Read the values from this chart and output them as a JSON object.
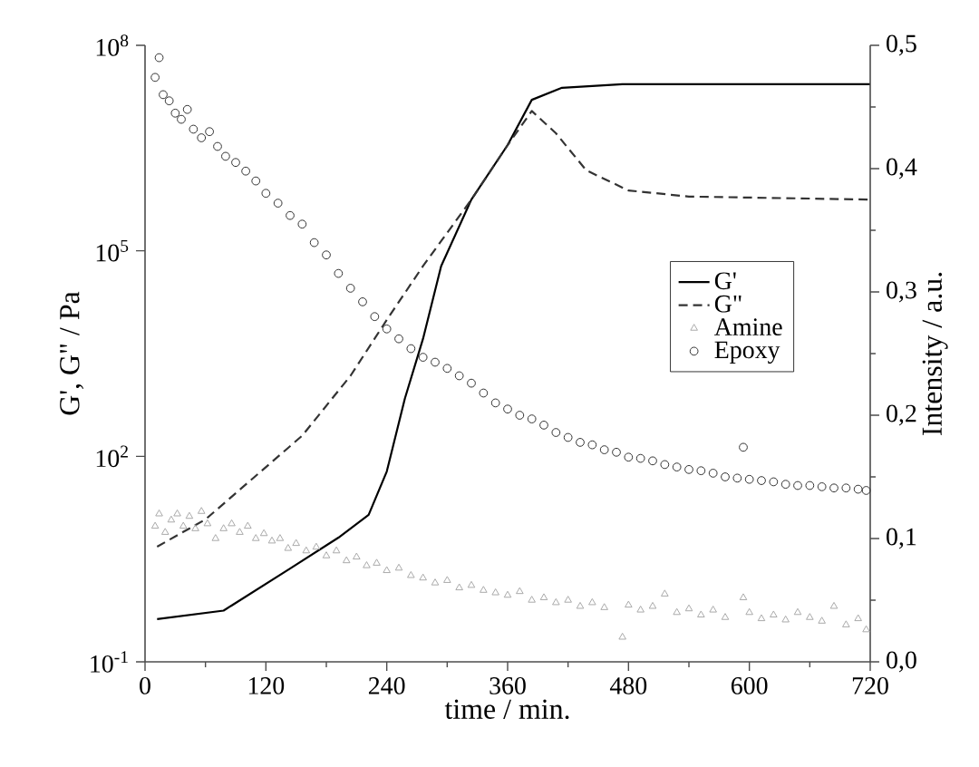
{
  "chart_data": {
    "type": "line",
    "xlabel": "time / min.",
    "ylabel": "G', G\" / Pa",
    "y2label": "Intensity / a.u.",
    "log": "y",
    "legend": "right",
    "grid": false,
    "xlim": [
      0,
      720
    ],
    "xticks": [
      0,
      120,
      240,
      360,
      480,
      600,
      720
    ],
    "ylim": [
      0.1,
      100000000
    ],
    "yticks": [
      {
        "value": 0.1,
        "label": "10$^{-1}$"
      },
      {
        "value": 100,
        "label": "10$^{2}$"
      },
      {
        "value": 100000,
        "label": "10$^{5}$"
      },
      {
        "value": 100000000,
        "label": "10$^{8}$"
      }
    ],
    "y2lim": [
      0,
      0.5
    ],
    "y2ticks": [
      {
        "value": 0,
        "label": "0,0"
      },
      {
        "value": 0.1,
        "label": "0,1"
      },
      {
        "value": 0.2,
        "label": "0,2"
      },
      {
        "value": 0.3,
        "label": "0,3"
      },
      {
        "value": 0.4,
        "label": "0,4"
      },
      {
        "value": 0.5,
        "label": "0,5"
      }
    ],
    "series": [
      {
        "name": "G'",
        "color": "#000000",
        "line_style": "solid",
        "marker": "none",
        "x": [
          12,
          78,
          144,
          192,
          222,
          240,
          258,
          276,
          294,
          324,
          360,
          384,
          414,
          474,
          720
        ],
        "values": [
          0.42,
          0.56,
          2.3,
          6.5,
          14,
          60,
          700,
          5200,
          60000,
          560000,
          3500000,
          16000000,
          24000000,
          27000000,
          27000000
        ]
      },
      {
        "name": "G\"",
        "color": "#333333",
        "line_style": "dashed",
        "marker": "none",
        "x": [
          12,
          60,
          108,
          156,
          204,
          240,
          276,
          324,
          360,
          384,
          408,
          438,
          480,
          540,
          720
        ],
        "values": [
          4.8,
          12,
          49,
          200,
          1500,
          9800,
          60000,
          560000,
          3500000,
          11000000,
          5200000,
          1500000,
          760000,
          620000,
          560000
        ]
      },
      {
        "name": "Amine",
        "type": "scatter",
        "axis": "y2",
        "color": "#aaaaaa",
        "marker": "triangle",
        "x": [
          10,
          14,
          20,
          26,
          32,
          38,
          44,
          50,
          56,
          62,
          70,
          78,
          86,
          94,
          102,
          110,
          118,
          126,
          134,
          142,
          150,
          160,
          170,
          180,
          190,
          200,
          210,
          220,
          230,
          240,
          252,
          264,
          276,
          288,
          300,
          312,
          324,
          336,
          348,
          360,
          372,
          384,
          396,
          408,
          420,
          432,
          444,
          456,
          474,
          480,
          492,
          504,
          516,
          528,
          540,
          552,
          564,
          576,
          594,
          600,
          612,
          624,
          636,
          648,
          660,
          672,
          684,
          696,
          708,
          716
        ],
        "values": [
          0.11,
          0.12,
          0.105,
          0.115,
          0.12,
          0.11,
          0.118,
          0.108,
          0.122,
          0.112,
          0.1,
          0.108,
          0.112,
          0.105,
          0.11,
          0.1,
          0.104,
          0.098,
          0.1,
          0.092,
          0.096,
          0.09,
          0.093,
          0.086,
          0.09,
          0.082,
          0.085,
          0.078,
          0.08,
          0.074,
          0.076,
          0.07,
          0.068,
          0.064,
          0.066,
          0.06,
          0.062,
          0.058,
          0.056,
          0.054,
          0.057,
          0.05,
          0.052,
          0.048,
          0.05,
          0.045,
          0.048,
          0.044,
          0.02,
          0.046,
          0.042,
          0.045,
          0.055,
          0.04,
          0.043,
          0.038,
          0.042,
          0.036,
          0.052,
          0.04,
          0.035,
          0.038,
          0.034,
          0.04,
          0.036,
          0.033,
          0.045,
          0.03,
          0.035,
          0.026
        ]
      },
      {
        "name": "Epoxy",
        "type": "scatter",
        "axis": "y2",
        "color": "#333333",
        "marker": "circle",
        "x": [
          10,
          14,
          18,
          24,
          30,
          36,
          42,
          48,
          56,
          64,
          72,
          80,
          90,
          100,
          110,
          120,
          132,
          144,
          156,
          168,
          180,
          192,
          204,
          216,
          228,
          240,
          252,
          264,
          276,
          288,
          300,
          312,
          324,
          336,
          348,
          360,
          372,
          384,
          396,
          408,
          420,
          432,
          444,
          456,
          468,
          480,
          492,
          504,
          516,
          528,
          540,
          552,
          564,
          576,
          588,
          594,
          600,
          612,
          624,
          636,
          648,
          660,
          672,
          684,
          696,
          708,
          716
        ],
        "values": [
          0.474,
          0.49,
          0.46,
          0.455,
          0.445,
          0.44,
          0.448,
          0.432,
          0.425,
          0.43,
          0.418,
          0.41,
          0.405,
          0.398,
          0.39,
          0.38,
          0.372,
          0.362,
          0.355,
          0.34,
          0.33,
          0.315,
          0.303,
          0.292,
          0.28,
          0.27,
          0.262,
          0.254,
          0.247,
          0.243,
          0.238,
          0.232,
          0.226,
          0.218,
          0.21,
          0.205,
          0.2,
          0.197,
          0.192,
          0.186,
          0.182,
          0.178,
          0.176,
          0.172,
          0.17,
          0.166,
          0.165,
          0.163,
          0.16,
          0.158,
          0.156,
          0.155,
          0.153,
          0.15,
          0.149,
          0.174,
          0.148,
          0.147,
          0.146,
          0.144,
          0.143,
          0.143,
          0.142,
          0.141,
          0.141,
          0.14,
          0.139
        ]
      }
    ]
  }
}
